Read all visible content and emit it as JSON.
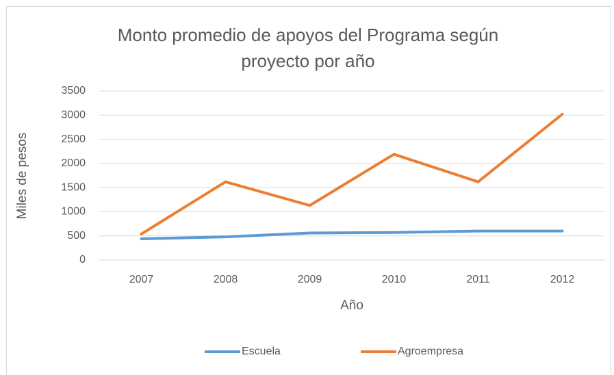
{
  "chart_data": {
    "type": "line",
    "title": "Monto promedio de apoyos del Programa según proyecto por año",
    "x_label": "Año",
    "y_label": "Miles de pesos",
    "categories": [
      "2007",
      "2008",
      "2009",
      "2010",
      "2011",
      "2012"
    ],
    "series": [
      {
        "name": "Escuela",
        "color": "#5b9bd5",
        "values": [
          440,
          480,
          560,
          570,
          600,
          600
        ]
      },
      {
        "name": "Agroempresa",
        "color": "#ed7d31",
        "values": [
          540,
          1620,
          1130,
          2190,
          1620,
          3020
        ]
      }
    ],
    "ylim": [
      0,
      3500
    ],
    "yticks": [
      0,
      500,
      1000,
      1500,
      2000,
      2500,
      3000,
      3500
    ],
    "grid": true,
    "legend": "bottom"
  }
}
